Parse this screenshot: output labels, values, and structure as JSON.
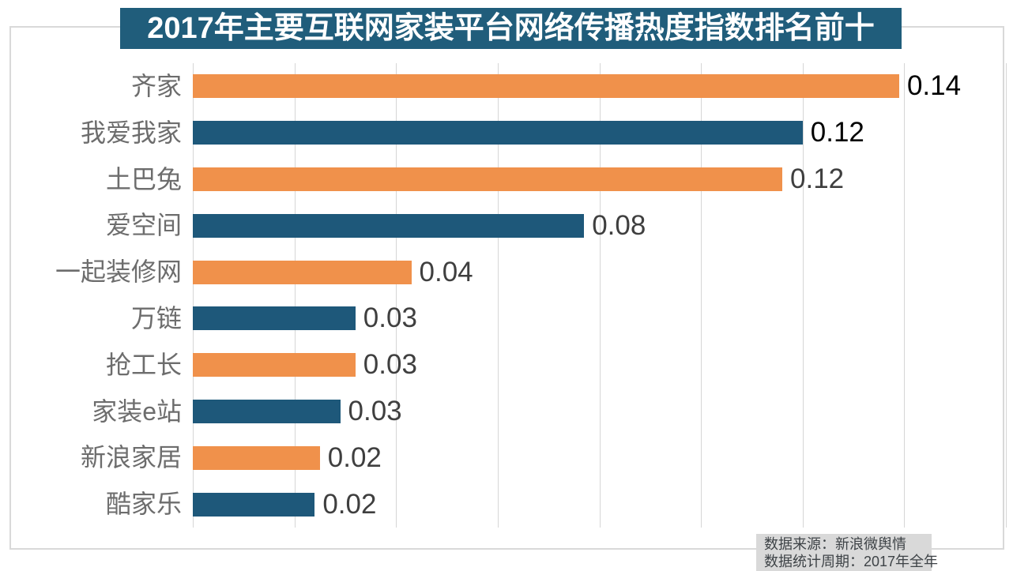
{
  "title": "2017年主要互联网家装平台网络传播热度指数排名前十",
  "colors": {
    "title_bg": "#205D7B",
    "bar_orange": "#F0914B",
    "bar_blue": "#1E587A",
    "gridline": "#D6D6D6",
    "panel_border": "#D9D9D9",
    "category_label": "#6D6D6D",
    "source_bg": "#D9D9D9",
    "source_text": "#3E4347"
  },
  "chart_data": {
    "type": "bar",
    "orientation": "horizontal",
    "title": "2017年主要互联网家装平台网络传播热度指数排名前十",
    "categories": [
      "齐家",
      "我爱我家",
      "土巴兔",
      "爱空间",
      "一起装修网",
      "万链",
      "抢工长",
      "家装e站",
      "新浪家居",
      "酷家乐"
    ],
    "values": [
      0.14,
      0.12,
      0.12,
      0.08,
      0.04,
      0.03,
      0.03,
      0.03,
      0.02,
      0.02
    ],
    "value_labels": [
      "0.14",
      "0.12",
      "0.12",
      "0.08",
      "0.04",
      "0.03",
      "0.03",
      "0.03",
      "0.02",
      "0.02"
    ],
    "bar_length_estimates": [
      0.139,
      0.12,
      0.116,
      0.077,
      0.043,
      0.032,
      0.032,
      0.029,
      0.025,
      0.024
    ],
    "value_label_colors": [
      "#000000",
      "#000000",
      "#3F3F3F",
      "#3F3F3F",
      "#3F3F3F",
      "#3F3F3F",
      "#3F3F3F",
      "#3F3F3F",
      "#3F3F3F",
      "#3F3F3F"
    ],
    "xlim": [
      0,
      0.16
    ],
    "grid_interval": 0.02,
    "grid": true,
    "x_tick_labels_visible": false,
    "legend": "none",
    "bar_palette_alternating": [
      "#F0914B",
      "#1E587A"
    ]
  },
  "source": {
    "line1": "数据来源：新浪微舆情",
    "line2": "数据统计周期：2017年全年"
  }
}
